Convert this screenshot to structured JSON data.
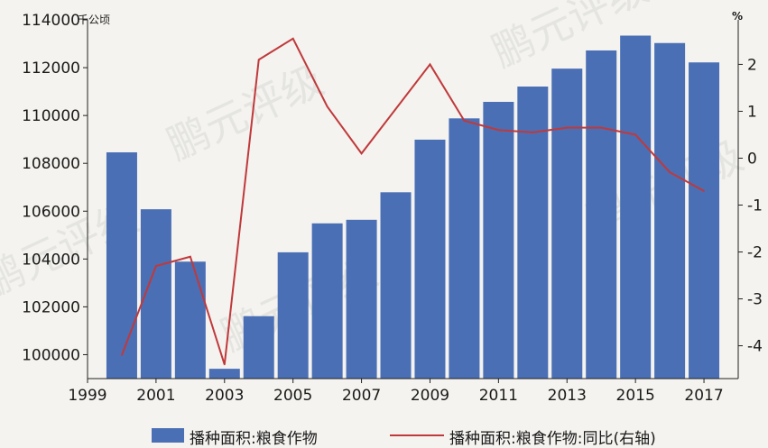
{
  "chart_data": {
    "type": "bar",
    "left_unit": "千公顷",
    "right_unit": "%",
    "x_axis": {
      "min": 1999,
      "max": 2018,
      "ticks": [
        "1999",
        "2001",
        "2003",
        "2005",
        "2007",
        "2009",
        "2011",
        "2013",
        "2015",
        "2017"
      ]
    },
    "y_left": {
      "min": 99000,
      "max": 114000,
      "ticks": [
        "100000",
        "102000",
        "104000",
        "106000",
        "108000",
        "110000",
        "112000",
        "114000"
      ],
      "top_label": "114000"
    },
    "y_right": {
      "min": -4.7,
      "max": 2.95,
      "ticks": [
        "2",
        "1",
        "0",
        "-1",
        "-2",
        "-3",
        "-4"
      ]
    },
    "x": [
      2000,
      2001,
      2002,
      2003,
      2004,
      2005,
      2006,
      2007,
      2008,
      2009,
      2010,
      2011,
      2012,
      2013,
      2014,
      2015,
      2016,
      2017
    ],
    "series": [
      {
        "name": "播种面积:粮食作物",
        "type": "bar",
        "axis": "left",
        "color": "#4a6fb5",
        "values": [
          108460,
          106080,
          103890,
          99410,
          101610,
          104280,
          105490,
          105640,
          106790,
          108990,
          109880,
          110570,
          111210,
          111960,
          112720,
          113340,
          113030,
          112220
        ]
      },
      {
        "name": "播种面积:粮食作物:同比(右轴)",
        "type": "line",
        "axis": "right",
        "color": "#c0393b",
        "values": [
          -4.2,
          -2.3,
          -2.1,
          -4.4,
          2.1,
          2.55,
          1.1,
          0.1,
          1.05,
          2.0,
          0.8,
          0.6,
          0.55,
          0.65,
          0.65,
          0.5,
          -0.3,
          -0.7
        ]
      }
    ]
  },
  "watermark": {
    "text": "鹏元评级",
    "subtext": "PENGYUAN CREDIT RATING"
  }
}
